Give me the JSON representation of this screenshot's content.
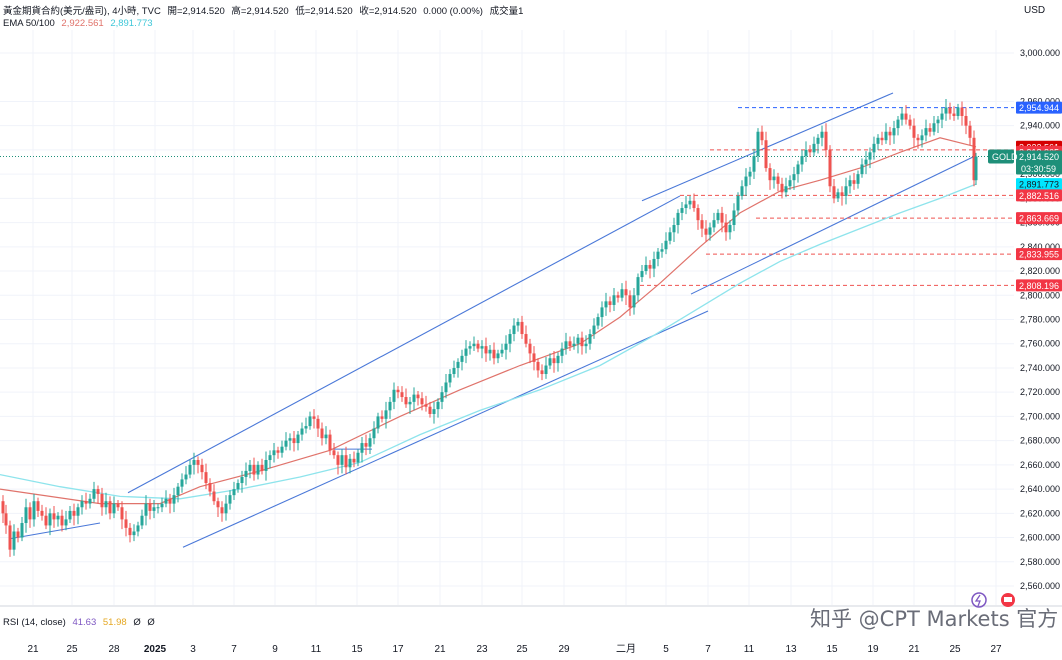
{
  "header": {
    "symbol": "黃金期貨合約(美元/盎司), 4小時, TVC",
    "open": "開=2,914.520",
    "high": "高=2,914.520",
    "low": "低=2,914.520",
    "close": "收=2,914.520",
    "change": "0.000 (0.00%)",
    "volume": "成交量1",
    "ema_label": "EMA 50/100",
    "ema50": "2,922.561",
    "ema100": "2,891.773"
  },
  "currency": "USD",
  "rsi": {
    "label": "RSI (14, close)",
    "value1": "41.63",
    "value2": "51.98",
    "flag1": "Ø",
    "flag2": "Ø"
  },
  "watermark": "知乎 @CPT Markets 官方",
  "colors": {
    "up": "#26a69a",
    "down": "#ef5350",
    "ema50": "#e0736b",
    "ema100": "#8ee4ec",
    "channel": "#4a78d8",
    "gold_tag": "#1e8f79"
  },
  "chart_data": {
    "type": "candlestick",
    "title": "Gold Futures 4H",
    "ylim": [
      2550,
      3010
    ],
    "y_ticks": [
      "2,560.000",
      "2,580.000",
      "2,600.000",
      "2,620.000",
      "2,640.000",
      "2,660.000",
      "2,680.000",
      "2,700.000",
      "2,720.000",
      "2,740.000",
      "2,760.000",
      "2,780.000",
      "2,800.000",
      "2,820.000",
      "2,840.000",
      "2,860.000",
      "2,880.000",
      "2,900.000",
      "2,920.000",
      "2,940.000",
      "2,960.000",
      "3,000.000"
    ],
    "x_ticks": [
      "21",
      "25",
      "28",
      "2025",
      "3",
      "7",
      "9",
      "11",
      "15",
      "17",
      "21",
      "23",
      "25",
      "29",
      "二月",
      "5",
      "7",
      "11",
      "13",
      "15",
      "19",
      "21",
      "25",
      "27"
    ],
    "close_path": [
      [
        0,
        2630
      ],
      [
        3,
        2620
      ],
      [
        6,
        2610
      ],
      [
        10,
        2590
      ],
      [
        14,
        2605
      ],
      [
        18,
        2600
      ],
      [
        22,
        2612
      ],
      [
        26,
        2625
      ],
      [
        30,
        2615
      ],
      [
        34,
        2630
      ],
      [
        38,
        2622
      ],
      [
        42,
        2618
      ],
      [
        46,
        2610
      ],
      [
        50,
        2620
      ],
      [
        54,
        2615
      ],
      [
        58,
        2618
      ],
      [
        62,
        2610
      ],
      [
        66,
        2615
      ],
      [
        70,
        2622
      ],
      [
        74,
        2618
      ],
      [
        78,
        2625
      ],
      [
        82,
        2630
      ],
      [
        86,
        2628
      ],
      [
        90,
        2632
      ],
      [
        94,
        2640
      ],
      [
        98,
        2636
      ],
      [
        102,
        2625
      ],
      [
        106,
        2630
      ],
      [
        110,
        2620
      ],
      [
        114,
        2628
      ],
      [
        118,
        2625
      ],
      [
        122,
        2615
      ],
      [
        126,
        2608
      ],
      [
        130,
        2602
      ],
      [
        134,
        2605
      ],
      [
        138,
        2610
      ],
      [
        142,
        2618
      ],
      [
        146,
        2628
      ],
      [
        150,
        2622
      ],
      [
        154,
        2625
      ],
      [
        158,
        2625
      ],
      [
        162,
        2628
      ],
      [
        166,
        2632
      ],
      [
        170,
        2628
      ],
      [
        174,
        2635
      ],
      [
        178,
        2642
      ],
      [
        182,
        2648
      ],
      [
        186,
        2652
      ],
      [
        190,
        2660
      ],
      [
        194,
        2664
      ],
      [
        198,
        2660
      ],
      [
        202,
        2654
      ],
      [
        206,
        2645
      ],
      [
        210,
        2638
      ],
      [
        214,
        2630
      ],
      [
        218,
        2625
      ],
      [
        222,
        2620
      ],
      [
        226,
        2628
      ],
      [
        230,
        2635
      ],
      [
        234,
        2640
      ],
      [
        238,
        2645
      ],
      [
        242,
        2650
      ],
      [
        246,
        2655
      ],
      [
        250,
        2660
      ],
      [
        254,
        2652
      ],
      [
        258,
        2660
      ],
      [
        262,
        2655
      ],
      [
        266,
        2664
      ],
      [
        270,
        2668
      ],
      [
        274,
        2672
      ],
      [
        278,
        2670
      ],
      [
        282,
        2675
      ],
      [
        286,
        2680
      ],
      [
        290,
        2682
      ],
      [
        294,
        2678
      ],
      [
        298,
        2685
      ],
      [
        302,
        2690
      ],
      [
        306,
        2692
      ],
      [
        310,
        2700
      ],
      [
        314,
        2698
      ],
      [
        318,
        2690
      ],
      [
        322,
        2682
      ],
      [
        326,
        2685
      ],
      [
        330,
        2672
      ],
      [
        334,
        2668
      ],
      [
        338,
        2660
      ],
      [
        342,
        2668
      ],
      [
        346,
        2658
      ],
      [
        350,
        2665
      ],
      [
        354,
        2662
      ],
      [
        358,
        2670
      ],
      [
        362,
        2678
      ],
      [
        366,
        2675
      ],
      [
        370,
        2682
      ],
      [
        374,
        2690
      ],
      [
        378,
        2700
      ],
      [
        382,
        2698
      ],
      [
        386,
        2705
      ],
      [
        390,
        2712
      ],
      [
        394,
        2722
      ],
      [
        398,
        2720
      ],
      [
        402,
        2716
      ],
      [
        406,
        2710
      ],
      [
        410,
        2712
      ],
      [
        414,
        2718
      ],
      [
        418,
        2715
      ],
      [
        422,
        2710
      ],
      [
        426,
        2708
      ],
      [
        430,
        2702
      ],
      [
        434,
        2706
      ],
      [
        438,
        2712
      ],
      [
        442,
        2720
      ],
      [
        446,
        2728
      ],
      [
        450,
        2735
      ],
      [
        454,
        2740
      ],
      [
        458,
        2745
      ],
      [
        462,
        2750
      ],
      [
        466,
        2756
      ],
      [
        470,
        2758
      ],
      [
        474,
        2760
      ],
      [
        478,
        2756
      ],
      [
        482,
        2758
      ],
      [
        486,
        2752
      ],
      [
        490,
        2755
      ],
      [
        494,
        2748
      ],
      [
        498,
        2752
      ],
      [
        502,
        2755
      ],
      [
        506,
        2760
      ],
      [
        510,
        2768
      ],
      [
        514,
        2775
      ],
      [
        518,
        2778
      ],
      [
        522,
        2768
      ],
      [
        526,
        2760
      ],
      [
        530,
        2752
      ],
      [
        534,
        2745
      ],
      [
        538,
        2738
      ],
      [
        542,
        2735
      ],
      [
        546,
        2742
      ],
      [
        550,
        2748
      ],
      [
        554,
        2744
      ],
      [
        558,
        2750
      ],
      [
        562,
        2756
      ],
      [
        566,
        2762
      ],
      [
        570,
        2758
      ],
      [
        574,
        2760
      ],
      [
        578,
        2765
      ],
      [
        582,
        2758
      ],
      [
        586,
        2760
      ],
      [
        590,
        2768
      ],
      [
        594,
        2775
      ],
      [
        598,
        2782
      ],
      [
        602,
        2790
      ],
      [
        606,
        2795
      ],
      [
        610,
        2792
      ],
      [
        614,
        2800
      ],
      [
        618,
        2798
      ],
      [
        622,
        2805
      ],
      [
        626,
        2800
      ],
      [
        630,
        2790
      ],
      [
        634,
        2800
      ],
      [
        638,
        2815
      ],
      [
        642,
        2820
      ],
      [
        646,
        2825
      ],
      [
        650,
        2822
      ],
      [
        654,
        2830
      ],
      [
        658,
        2836
      ],
      [
        662,
        2838
      ],
      [
        666,
        2845
      ],
      [
        670,
        2852
      ],
      [
        674,
        2858
      ],
      [
        678,
        2868
      ],
      [
        682,
        2872
      ],
      [
        686,
        2875
      ],
      [
        690,
        2878
      ],
      [
        694,
        2872
      ],
      [
        698,
        2862
      ],
      [
        702,
        2855
      ],
      [
        706,
        2850
      ],
      [
        710,
        2856
      ],
      [
        714,
        2862
      ],
      [
        718,
        2868
      ],
      [
        722,
        2860
      ],
      [
        726,
        2852
      ],
      [
        730,
        2858
      ],
      [
        734,
        2870
      ],
      [
        738,
        2882
      ],
      [
        742,
        2890
      ],
      [
        746,
        2898
      ],
      [
        750,
        2902
      ],
      [
        754,
        2915
      ],
      [
        758,
        2935
      ],
      [
        762,
        2928
      ],
      [
        766,
        2905
      ],
      [
        770,
        2895
      ],
      [
        774,
        2898
      ],
      [
        778,
        2892
      ],
      [
        782,
        2885
      ],
      [
        786,
        2890
      ],
      [
        790,
        2895
      ],
      [
        794,
        2900
      ],
      [
        798,
        2908
      ],
      [
        802,
        2915
      ],
      [
        806,
        2920
      ],
      [
        810,
        2918
      ],
      [
        814,
        2925
      ],
      [
        818,
        2930
      ],
      [
        822,
        2935
      ],
      [
        826,
        2920
      ],
      [
        830,
        2890
      ],
      [
        834,
        2880
      ],
      [
        838,
        2885
      ],
      [
        842,
        2882
      ],
      [
        846,
        2890
      ],
      [
        850,
        2895
      ],
      [
        854,
        2892
      ],
      [
        858,
        2900
      ],
      [
        862,
        2908
      ],
      [
        866,
        2912
      ],
      [
        870,
        2918
      ],
      [
        874,
        2925
      ],
      [
        878,
        2930
      ],
      [
        882,
        2928
      ],
      [
        886,
        2935
      ],
      [
        890,
        2932
      ],
      [
        894,
        2938
      ],
      [
        898,
        2945
      ],
      [
        902,
        2950
      ],
      [
        906,
        2945
      ],
      [
        910,
        2940
      ],
      [
        914,
        2930
      ],
      [
        918,
        2928
      ],
      [
        922,
        2932
      ],
      [
        926,
        2938
      ],
      [
        930,
        2935
      ],
      [
        934,
        2942
      ],
      [
        938,
        2945
      ],
      [
        942,
        2950
      ],
      [
        946,
        2955
      ],
      [
        950,
        2950
      ],
      [
        954,
        2948
      ],
      [
        958,
        2955
      ],
      [
        962,
        2948
      ],
      [
        966,
        2940
      ],
      [
        970,
        2930
      ],
      [
        974,
        2895
      ],
      [
        976,
        2914.52
      ]
    ],
    "ema50_path": [
      [
        0,
        2640
      ],
      [
        100,
        2628
      ],
      [
        160,
        2628
      ],
      [
        200,
        2642
      ],
      [
        260,
        2655
      ],
      [
        330,
        2672
      ],
      [
        400,
        2700
      ],
      [
        460,
        2722
      ],
      [
        520,
        2742
      ],
      [
        580,
        2760
      ],
      [
        620,
        2782
      ],
      [
        660,
        2810
      ],
      [
        700,
        2840
      ],
      [
        740,
        2868
      ],
      [
        780,
        2886
      ],
      [
        820,
        2895
      ],
      [
        860,
        2905
      ],
      [
        900,
        2918
      ],
      [
        940,
        2930
      ],
      [
        976,
        2922.561
      ]
    ],
    "ema100_path": [
      [
        0,
        2652
      ],
      [
        60,
        2642
      ],
      [
        120,
        2634
      ],
      [
        180,
        2632
      ],
      [
        240,
        2640
      ],
      [
        300,
        2650
      ],
      [
        360,
        2662
      ],
      [
        420,
        2685
      ],
      [
        480,
        2705
      ],
      [
        540,
        2722
      ],
      [
        600,
        2742
      ],
      [
        650,
        2765
      ],
      [
        700,
        2790
      ],
      [
        740,
        2810
      ],
      [
        780,
        2828
      ],
      [
        820,
        2842
      ],
      [
        860,
        2855
      ],
      [
        900,
        2868
      ],
      [
        940,
        2880
      ],
      [
        976,
        2891.773
      ]
    ],
    "channels": [
      {
        "name": "lower-long-channel-bottom",
        "from": [
          183,
          2592
        ],
        "to": [
          708,
          2787
        ]
      },
      {
        "name": "lower-long-channel-top",
        "from": [
          128,
          2637
        ],
        "to": [
          680,
          2882
        ]
      },
      {
        "name": "upper-channel-top",
        "from": [
          642,
          2878
        ],
        "to": [
          893,
          2967
        ]
      },
      {
        "name": "upper-channel-bottom",
        "from": [
          691,
          2801
        ],
        "to": [
          975,
          2915
        ]
      },
      {
        "name": "early-trendline",
        "from": [
          10,
          2599
        ],
        "to": [
          100,
          2612
        ]
      }
    ],
    "horizontal_levels": [
      {
        "label": "2,954.944",
        "value": 2954.944,
        "style": "dashed",
        "color": "#2962ff",
        "from_x": 738
      },
      {
        "label": "2,922.561",
        "value": 2922.561,
        "style": "none",
        "color": "#d50000"
      },
      {
        "label": "2,918.365",
        "value": 2918.365,
        "style": "none",
        "color": "#e53935"
      },
      {
        "label": "2,914.520",
        "value": 2914.52,
        "style": "dotted",
        "color": "#1e8f79",
        "from_x": 0
      },
      {
        "label": "2,891.773",
        "value": 2891.773,
        "style": "none",
        "color": "#00e5ff"
      },
      {
        "label": "2,882.516",
        "value": 2882.516,
        "style": "dashed",
        "color": "#ef5350",
        "from_x": 680
      },
      {
        "label": "2,863.669",
        "value": 2863.669,
        "style": "dashed",
        "color": "#ef5350",
        "from_x": 756
      },
      {
        "label": "2,833.955",
        "value": 2833.955,
        "style": "dashed",
        "color": "#ef5350",
        "from_x": 706
      },
      {
        "label": "2,808.196",
        "value": 2808.196,
        "style": "dashed",
        "color": "#ef5350",
        "from_x": 640
      },
      {
        "label": "2,920.000",
        "value": 2920,
        "style": "dashed",
        "color": "#ef5350",
        "from_x": 710
      }
    ],
    "price_tags": [
      {
        "text": "2,954.944",
        "value": 2954.944,
        "bg": "#2962ff",
        "fg": "#ffffff"
      },
      {
        "text": "2,922.561",
        "value": 2922.561,
        "bg": "#d50000",
        "fg": "#ffffff"
      },
      {
        "text": "2,918.365",
        "value": 2918.365,
        "bg": "#f23645",
        "fg": "#ffffff"
      },
      {
        "text": "2,914.520",
        "value": 2914.52,
        "bg": "#1e8f79",
        "fg": "#ffffff",
        "sub": "03:30:59",
        "badge": "GOLD"
      },
      {
        "text": "2,891.773",
        "value": 2891.773,
        "bg": "#00e5ff",
        "fg": "#131722"
      },
      {
        "text": "2,882.516",
        "value": 2882.516,
        "bg": "#f23645",
        "fg": "#ffffff"
      },
      {
        "text": "2,863.669",
        "value": 2863.669,
        "bg": "#f23645",
        "fg": "#ffffff"
      },
      {
        "text": "2,833.955",
        "value": 2833.955,
        "bg": "#f23645",
        "fg": "#ffffff"
      },
      {
        "text": "2,808.196",
        "value": 2808.196,
        "bg": "#f23645",
        "fg": "#ffffff"
      }
    ]
  }
}
